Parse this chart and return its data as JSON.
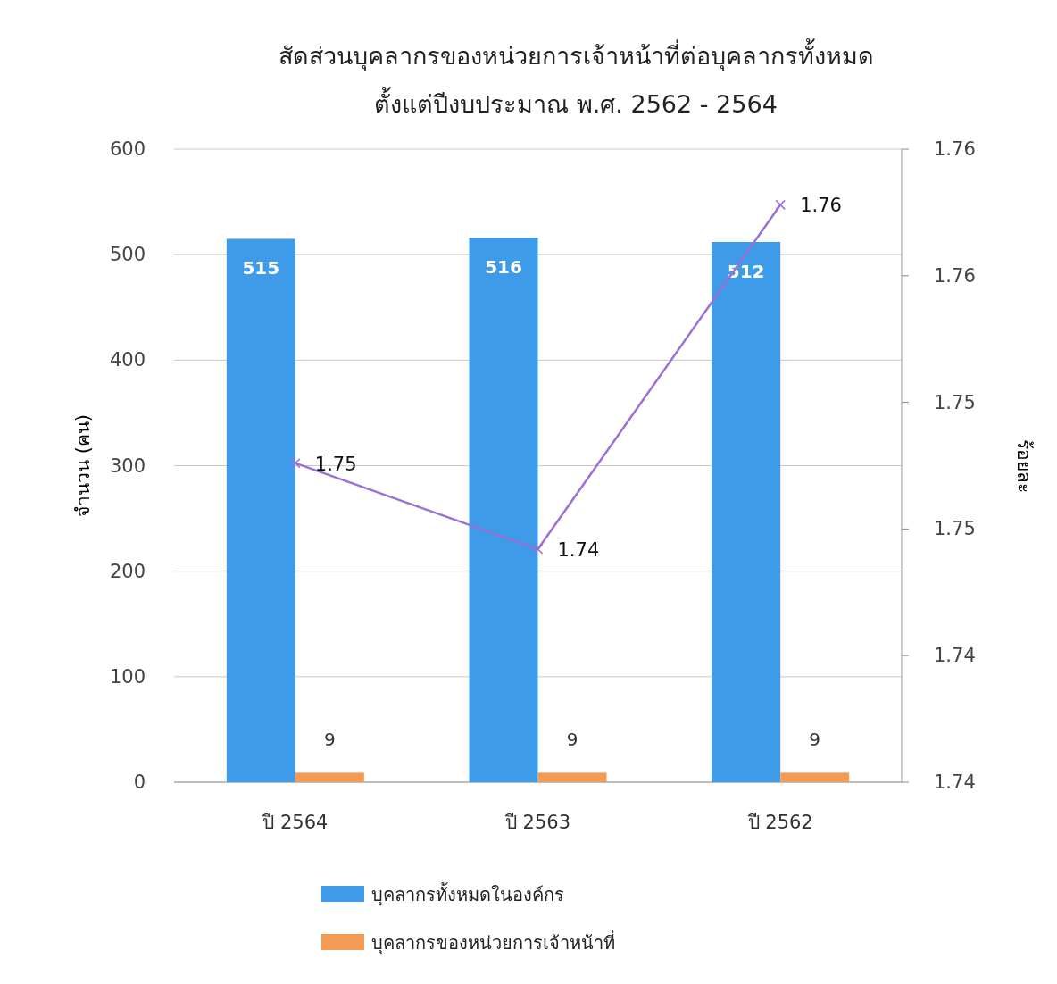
{
  "chart_data": {
    "type": "bar",
    "title": "สัดส่วนบุคลากรของหน่วยการเจ้าหน้าที่ต่อบุคลากรทั้งหมด",
    "subtitle": "ตั้งแต่ปีงบประมาณ พ.ศ. 2562 - 2564",
    "ylabel": "จำนวน (คน)",
    "y2label": "ร้อยละ",
    "categories": [
      "ปี 2564",
      "ปี 2563",
      "ปี 2562"
    ],
    "series": [
      {
        "name": "บุคลากรทั้งหมดในองค์กร",
        "color": "#3d9be9",
        "values": [
          515,
          516,
          512
        ]
      },
      {
        "name": "บุคลากรของหน่วยการเจ้าหน้าที่",
        "color": "#f39a55",
        "values": [
          9,
          9,
          9
        ]
      },
      {
        "type": "line",
        "axis": "y2",
        "color": "#9b6fd4",
        "marker": "cross",
        "values": [
          1.7476,
          1.7442,
          1.7578
        ],
        "value_labels": [
          "1.75",
          "1.74",
          "1.76"
        ]
      }
    ],
    "data_labels": true,
    "ylim": [
      0,
      600
    ],
    "yticks": [
      0,
      100,
      200,
      300,
      400,
      500,
      600
    ],
    "y2lim": [
      1.735,
      1.76
    ],
    "y2ticks": [
      {
        "value": 1.735,
        "label": "1.74"
      },
      {
        "value": 1.74,
        "label": "1.74"
      },
      {
        "value": 1.745,
        "label": "1.75"
      },
      {
        "value": 1.75,
        "label": "1.75"
      },
      {
        "value": 1.755,
        "label": "1.76"
      },
      {
        "value": 1.76,
        "label": "1.76"
      }
    ],
    "grid": "y",
    "legend": "bottom"
  }
}
